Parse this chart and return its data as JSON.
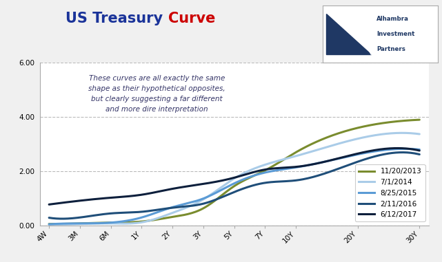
{
  "title_part1": "US Treasury ",
  "title_part2": "Curve",
  "title_color1": "#1a3399",
  "title_color2": "#cc0000",
  "annotation": "These curves are all exactly the same\nshape as their hypothetical opposites,\nbut clearly suggesting a far different\nand more dire interpretation",
  "x_labels": [
    "4W",
    "3M",
    "6M",
    "1Y",
    "2Y",
    "3Y",
    "5Y",
    "7Y",
    "10Y",
    "20Y",
    "30Y"
  ],
  "x_custom": [
    0,
    1,
    2,
    3,
    4,
    5,
    6,
    7,
    8,
    10,
    12
  ],
  "series": [
    {
      "label": "11/20/2013",
      "color": "#7a8c2e",
      "linewidth": 2.2,
      "values": [
        0.05,
        0.07,
        0.1,
        0.14,
        0.31,
        0.63,
        1.45,
        2.03,
        2.7,
        3.6,
        3.9
      ]
    },
    {
      "label": "7/1/2014",
      "color": "#aacce8",
      "linewidth": 2.2,
      "values": [
        0.03,
        0.05,
        0.07,
        0.11,
        0.46,
        0.96,
        1.73,
        2.24,
        2.56,
        3.2,
        3.37
      ]
    },
    {
      "label": "8/25/2015",
      "color": "#5b9bd5",
      "linewidth": 2.2,
      "values": [
        0.04,
        0.07,
        0.1,
        0.29,
        0.67,
        0.99,
        1.55,
        1.95,
        2.14,
        2.62,
        2.8
      ]
    },
    {
      "label": "2/11/2016",
      "color": "#1f4e79",
      "linewidth": 2.2,
      "values": [
        0.28,
        0.29,
        0.44,
        0.5,
        0.65,
        0.8,
        1.23,
        1.57,
        1.66,
        2.35,
        2.62
      ]
    },
    {
      "label": "6/12/2017",
      "color": "#0d1f3c",
      "linewidth": 2.2,
      "values": [
        0.77,
        0.91,
        1.02,
        1.13,
        1.35,
        1.53,
        1.76,
        2.06,
        2.16,
        2.65,
        2.76
      ]
    }
  ],
  "ylim": [
    0.0,
    6.0
  ],
  "yticks": [
    0.0,
    2.0,
    4.0,
    6.0
  ],
  "ytick_labels": [
    "0.00",
    "2.00",
    "4.00",
    "6.00"
  ],
  "background_color": "#f0f0f0",
  "plot_bg_color": "#ffffff",
  "grid_color": "#bbbbbb",
  "logo_color": "#1f3864"
}
